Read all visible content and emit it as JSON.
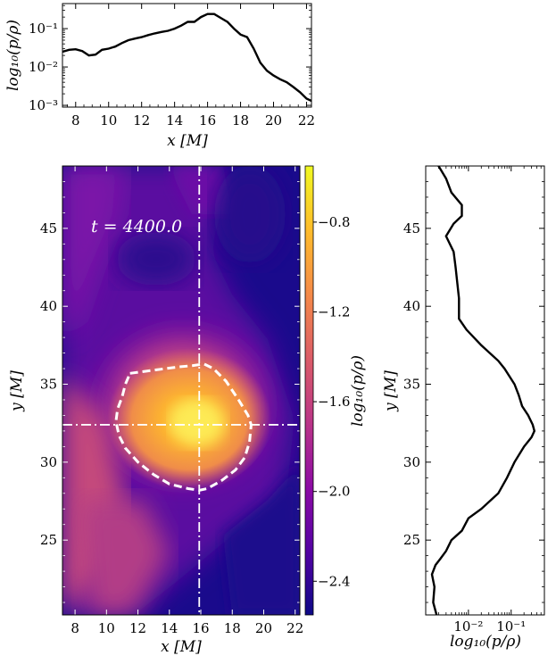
{
  "chart_data": [
    {
      "type": "line",
      "panel": "top-profile",
      "xlabel": "x [M]",
      "ylabel": "log10(p/ρ)",
      "xlim": [
        7.2,
        22.3
      ],
      "ylim": [
        0.0009,
        0.45
      ],
      "yscale": "log",
      "xticks": [
        "8",
        "10",
        "12",
        "14",
        "16",
        "18",
        "20",
        "22"
      ],
      "yticks": [
        "10⁻¹",
        "10⁻²",
        "10⁻³"
      ],
      "x": [
        7.2,
        7.6,
        8.0,
        8.4,
        8.8,
        9.2,
        9.6,
        10.0,
        10.4,
        10.8,
        11.2,
        11.6,
        12.0,
        12.4,
        12.8,
        13.2,
        13.6,
        14.0,
        14.4,
        14.8,
        15.2,
        15.6,
        16.0,
        16.4,
        16.8,
        17.2,
        17.6,
        18.0,
        18.4,
        18.8,
        19.2,
        19.6,
        20.0,
        20.4,
        20.8,
        21.2,
        21.6,
        22.0,
        22.3
      ],
      "y": [
        0.025,
        0.028,
        0.029,
        0.026,
        0.02,
        0.021,
        0.028,
        0.03,
        0.034,
        0.042,
        0.05,
        0.055,
        0.06,
        0.068,
        0.075,
        0.082,
        0.088,
        0.1,
        0.12,
        0.15,
        0.15,
        0.2,
        0.24,
        0.24,
        0.19,
        0.15,
        0.1,
        0.07,
        0.06,
        0.03,
        0.013,
        0.008,
        0.006,
        0.0048,
        0.004,
        0.003,
        0.0022,
        0.0015,
        0.0013
      ]
    },
    {
      "type": "heatmap",
      "panel": "main-map",
      "xlabel": "x [M]",
      "ylabel": "y [M]",
      "xlim": [
        7.2,
        22.3
      ],
      "ylim": [
        20.2,
        49.0
      ],
      "xticks": [
        "8",
        "10",
        "12",
        "14",
        "16",
        "18",
        "20",
        "22"
      ],
      "yticks": [
        "25",
        "30",
        "35",
        "40",
        "45"
      ],
      "annotation": "t = 4400.0",
      "crosshair": {
        "x": 15.9,
        "y": 32.4
      },
      "colorbar": {
        "label": "log10(p/ρ)",
        "range": [
          -2.55,
          -0.55
        ],
        "ticks": [
          "−0.8",
          "−1.2",
          "−1.6",
          "−2.0",
          "−2.4"
        ],
        "tick_values": [
          -0.8,
          -1.2,
          -1.6,
          -2.0,
          -2.4
        ],
        "colormap": [
          "#0d0887",
          "#5302a3",
          "#8b0aa5",
          "#b83289",
          "#db5c68",
          "#f48849",
          "#febd2a",
          "#f0f921"
        ]
      },
      "contour": {
        "style": "dashed",
        "x": [
          11.5,
          13.0,
          14.5,
          15.5,
          16.2,
          16.8,
          17.6,
          18.4,
          19.0,
          19.2,
          19.1,
          18.8,
          18.2,
          17.3,
          16.4,
          15.9,
          15.2,
          14.0,
          13.0,
          12.0,
          11.2,
          10.8,
          10.6,
          10.7,
          11.0,
          11.2,
          11.5
        ],
        "y": [
          35.7,
          35.9,
          36.1,
          36.2,
          36.3,
          36.0,
          35.2,
          34.0,
          33.0,
          32.4,
          31.3,
          30.3,
          29.5,
          28.8,
          28.3,
          28.2,
          28.3,
          28.6,
          29.2,
          30.0,
          30.9,
          31.7,
          32.6,
          33.4,
          34.2,
          35.0,
          35.7
        ]
      }
    },
    {
      "type": "line",
      "panel": "right-profile",
      "xlabel": "log10(p/ρ)",
      "ylabel": "y [M]",
      "xscale": "log",
      "xlim": [
        0.001,
        0.6
      ],
      "ylim": [
        20.2,
        49.0
      ],
      "xticks": [
        "10⁻²",
        "10⁻¹"
      ],
      "yticks": [
        "25",
        "30",
        "35",
        "40",
        "45"
      ],
      "y": [
        20.2,
        21.0,
        22.0,
        22.8,
        23.4,
        23.8,
        24.3,
        25.0,
        25.6,
        26.4,
        27.0,
        28.0,
        29.0,
        30.0,
        31.0,
        31.6,
        32.0,
        32.4,
        33.0,
        33.6,
        34.3,
        35.0,
        36.0,
        36.5,
        37.5,
        38.5,
        39.2,
        39.6,
        40.5,
        41.5,
        42.5,
        43.5,
        44.5,
        45.3,
        45.8,
        46.5,
        47.3,
        48.2,
        49.0
      ],
      "x": [
        0.0018,
        0.0015,
        0.0016,
        0.0014,
        0.0017,
        0.0022,
        0.003,
        0.004,
        0.007,
        0.01,
        0.02,
        0.05,
        0.08,
        0.12,
        0.2,
        0.3,
        0.35,
        0.32,
        0.25,
        0.18,
        0.15,
        0.12,
        0.07,
        0.05,
        0.02,
        0.009,
        0.006,
        0.006,
        0.006,
        0.0055,
        0.005,
        0.0045,
        0.003,
        0.0045,
        0.007,
        0.007,
        0.004,
        0.003,
        0.002
      ]
    }
  ]
}
